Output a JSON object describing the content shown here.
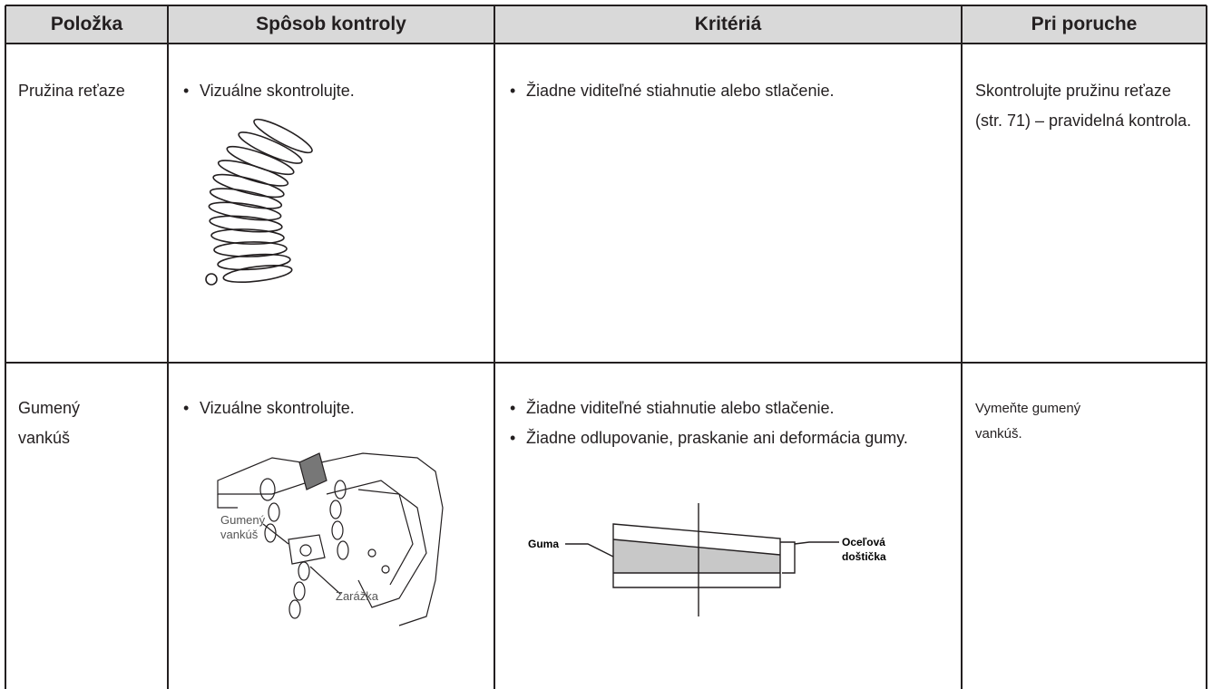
{
  "table": {
    "header": [
      "Položka",
      "Spôsob kontroly",
      "Kritériá",
      "Pri poruche"
    ],
    "rows": [
      {
        "item": "Pružina reťaze",
        "method": "Vizuálne skontrolujte.",
        "criteria": [
          "Žiadne viditeľné stiahnutie alebo stlačenie."
        ],
        "action": "Skontrolujte pružinu reťaze (str. 71) – pravidelná kontrola."
      },
      {
        "item": "Gumený vankúš",
        "method": "Vizuálne skontrolujte.",
        "method_figure_labels": [
          "Gumený vankúš",
          "Zarážka"
        ],
        "criteria": [
          "Žiadne viditeľné stiahnutie alebo stlačenie.",
          "Žiadne odlupovanie, praskanie ani deformácia gumy."
        ],
        "criteria_figure_labels": [
          "Guma",
          "Oceľová doštička"
        ],
        "action": "Vymeňte gumený vankúš."
      }
    ]
  }
}
